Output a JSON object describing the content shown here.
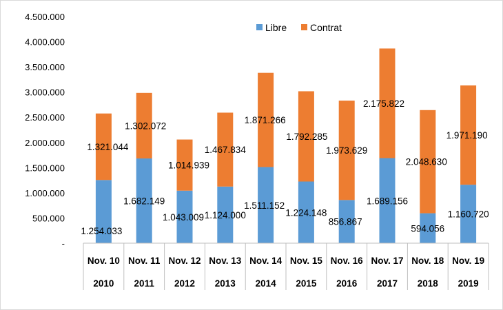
{
  "chart_data": {
    "type": "bar",
    "stacked": true,
    "categories": [
      {
        "month": "Nov. 10",
        "year": "2010"
      },
      {
        "month": "Nov. 11",
        "year": "2011"
      },
      {
        "month": "Nov. 12",
        "year": "2012"
      },
      {
        "month": "Nov. 13",
        "year": "2013"
      },
      {
        "month": "Nov. 14",
        "year": "2014"
      },
      {
        "month": "Nov. 15",
        "year": "2015"
      },
      {
        "month": "Nov. 16",
        "year": "2016"
      },
      {
        "month": "Nov. 17",
        "year": "2017"
      },
      {
        "month": "Nov. 18",
        "year": "2018"
      },
      {
        "month": "Nov. 19",
        "year": "2019"
      }
    ],
    "series": [
      {
        "name": "Libre",
        "color": "#5b9bd5",
        "values": [
          1254033,
          1682149,
          1043009,
          1124000,
          1511152,
          1224148,
          856867,
          1689156,
          594056,
          1160720
        ],
        "labels": [
          "1.254.033",
          "1.682.149",
          "1.043.009",
          "1.124.000",
          "1.511.152",
          "1.224.148",
          "856.867",
          "1.689.156",
          "594.056",
          "1.160.720"
        ]
      },
      {
        "name": "Contrat",
        "color": "#ed7d31",
        "values": [
          1321044,
          1302072,
          1014939,
          1467834,
          1871266,
          1792285,
          1973629,
          2175822,
          2048630,
          1971190
        ],
        "labels": [
          "1.321.044",
          "1.302.072",
          "1.014.939",
          "1.467.834",
          "1.871.266",
          "1.792.285",
          "1.973.629",
          "2.175.822",
          "2.048.630",
          "1.971.190"
        ]
      }
    ],
    "ylim": [
      0,
      4500000
    ],
    "yticks": [
      {
        "value": 0,
        "label": "-"
      },
      {
        "value": 500000,
        "label": "500.000"
      },
      {
        "value": 1000000,
        "label": "1.000.000"
      },
      {
        "value": 1500000,
        "label": "1.500.000"
      },
      {
        "value": 2000000,
        "label": "2.000.000"
      },
      {
        "value": 2500000,
        "label": "2.500.000"
      },
      {
        "value": 3000000,
        "label": "3.000.000"
      },
      {
        "value": 3500000,
        "label": "3.500.000"
      },
      {
        "value": 4000000,
        "label": "4.000.000"
      },
      {
        "value": 4500000,
        "label": "4.500.000"
      }
    ],
    "grid": false,
    "legend": "top-center"
  }
}
